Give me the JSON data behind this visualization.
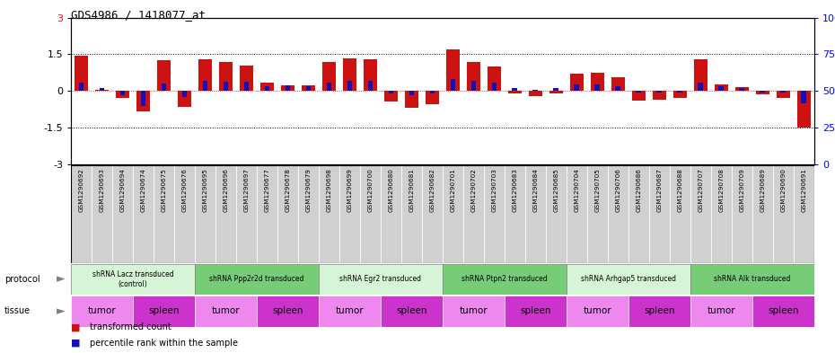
{
  "title": "GDS4986 / 1418077_at",
  "samples": [
    "GSM1290692",
    "GSM1290693",
    "GSM1290694",
    "GSM1290674",
    "GSM1290675",
    "GSM1290676",
    "GSM1290695",
    "GSM1290696",
    "GSM1290697",
    "GSM1290677",
    "GSM1290678",
    "GSM1290679",
    "GSM1290698",
    "GSM1290699",
    "GSM1290700",
    "GSM1290680",
    "GSM1290681",
    "GSM1290682",
    "GSM1290701",
    "GSM1290702",
    "GSM1290703",
    "GSM1290683",
    "GSM1290684",
    "GSM1290685",
    "GSM1290704",
    "GSM1290705",
    "GSM1290706",
    "GSM1290686",
    "GSM1290687",
    "GSM1290688",
    "GSM1290707",
    "GSM1290708",
    "GSM1290709",
    "GSM1290689",
    "GSM1290690",
    "GSM1290691"
  ],
  "red_values": [
    1.45,
    0.05,
    -0.3,
    -0.85,
    1.25,
    -0.65,
    1.3,
    1.2,
    1.05,
    0.35,
    0.22,
    0.22,
    1.2,
    1.35,
    1.3,
    -0.45,
    -0.7,
    -0.55,
    1.7,
    1.2,
    1.0,
    -0.1,
    -0.22,
    -0.1,
    0.7,
    0.75,
    0.55,
    -0.4,
    -0.35,
    -0.3,
    1.3,
    0.25,
    0.15,
    -0.15,
    -0.3,
    -1.5
  ],
  "blue_values": [
    0.35,
    0.12,
    -0.18,
    -0.62,
    0.3,
    -0.25,
    0.42,
    0.38,
    0.38,
    0.18,
    0.22,
    0.18,
    0.32,
    0.42,
    0.42,
    -0.12,
    -0.18,
    -0.12,
    0.5,
    0.4,
    0.32,
    0.1,
    0.06,
    0.1,
    0.28,
    0.28,
    0.18,
    -0.08,
    -0.08,
    -0.08,
    0.32,
    0.18,
    0.12,
    -0.05,
    -0.08,
    -0.5
  ],
  "protocols": [
    {
      "label": "shRNA Lacz transduced\n(control)",
      "start": 0,
      "end": 6,
      "color": "#d6f5d6"
    },
    {
      "label": "shRNA Ppp2r2d transduced",
      "start": 6,
      "end": 12,
      "color": "#77cc77"
    },
    {
      "label": "shRNA Egr2 transduced",
      "start": 12,
      "end": 18,
      "color": "#d6f5d6"
    },
    {
      "label": "shRNA Ptpn2 transduced",
      "start": 18,
      "end": 24,
      "color": "#77cc77"
    },
    {
      "label": "shRNA Arhgap5 transduced",
      "start": 24,
      "end": 30,
      "color": "#d6f5d6"
    },
    {
      "label": "shRNA Alk transduced",
      "start": 30,
      "end": 36,
      "color": "#77cc77"
    }
  ],
  "tissues": [
    {
      "label": "tumor",
      "start": 0,
      "end": 3,
      "color": "#ee88ee"
    },
    {
      "label": "spleen",
      "start": 3,
      "end": 6,
      "color": "#cc33cc"
    },
    {
      "label": "tumor",
      "start": 6,
      "end": 9,
      "color": "#ee88ee"
    },
    {
      "label": "spleen",
      "start": 9,
      "end": 12,
      "color": "#cc33cc"
    },
    {
      "label": "tumor",
      "start": 12,
      "end": 15,
      "color": "#ee88ee"
    },
    {
      "label": "spleen",
      "start": 15,
      "end": 18,
      "color": "#cc33cc"
    },
    {
      "label": "tumor",
      "start": 18,
      "end": 21,
      "color": "#ee88ee"
    },
    {
      "label": "spleen",
      "start": 21,
      "end": 24,
      "color": "#cc33cc"
    },
    {
      "label": "tumor",
      "start": 24,
      "end": 27,
      "color": "#ee88ee"
    },
    {
      "label": "spleen",
      "start": 27,
      "end": 30,
      "color": "#cc33cc"
    },
    {
      "label": "tumor",
      "start": 30,
      "end": 33,
      "color": "#ee88ee"
    },
    {
      "label": "spleen",
      "start": 33,
      "end": 36,
      "color": "#cc33cc"
    }
  ],
  "ylim": [
    -3,
    3
  ],
  "yticks_left": [
    -3,
    -1.5,
    0,
    1.5,
    3
  ],
  "yticks_left_labels": [
    "-3",
    "-1.5",
    "0",
    "1.5",
    "3"
  ],
  "yticks_left_colors": [
    "black",
    "black",
    "black",
    "black",
    "red"
  ],
  "yticks_right_pos": [
    -3,
    -1.5,
    0,
    1.5,
    3
  ],
  "yticks_right_labels": [
    "0",
    "25",
    "50",
    "75",
    "100%"
  ],
  "yticks_right_colors": [
    "blue",
    "blue",
    "blue",
    "blue",
    "blue"
  ],
  "red_color": "#cc1111",
  "blue_color": "#1111bb",
  "label_bg": "#cccccc",
  "bg_color": "#ffffff"
}
